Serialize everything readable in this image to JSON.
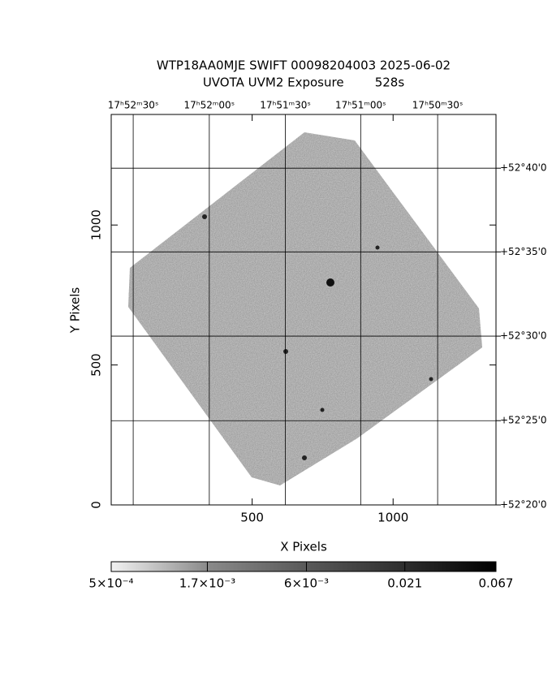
{
  "chart_data": {
    "type": "image",
    "title": "WTP18AA0MJE SWIFT 00098204003 2025-06-02",
    "subtitle": "UVOTA UVM2 Exposure        528s",
    "x_label": "X Pixels",
    "y_label": "Y Pixels",
    "xlim": [
      0,
      1365
    ],
    "ylim": [
      0,
      1395
    ],
    "xticks": [
      500,
      1000
    ],
    "yticks": [
      0,
      500,
      1000
    ],
    "ra_ticks": [
      {
        "value": 78,
        "label": "17ʰ52ᵐ30ˢ"
      },
      {
        "value": 348,
        "label": "17ʰ52ᵐ00ˢ"
      },
      {
        "value": 618,
        "label": "17ʰ51ᵐ30ˢ"
      },
      {
        "value": 885,
        "label": "17ʰ51ᵐ00ˢ"
      },
      {
        "value": 1158,
        "label": "17ʰ50ᵐ30ˢ"
      }
    ],
    "dec_ticks": [
      {
        "value": 1203,
        "label": "+52°40'0"
      },
      {
        "value": 904,
        "label": "+52°35'0"
      },
      {
        "value": 603,
        "label": "+52°30'0"
      },
      {
        "value": 301,
        "label": "+52°25'0"
      },
      {
        "value": 0,
        "label": "+52°20'0"
      }
    ],
    "grid": true,
    "colorbar": {
      "log": true,
      "lim": [
        0.0005,
        0.067
      ],
      "ticks": [
        {
          "value": 0.0005,
          "label": "5×10⁻⁴"
        },
        {
          "value": 0.0017,
          "label": "1.7×10⁻³"
        },
        {
          "value": 0.006,
          "label": "6×10⁻³"
        },
        0.021,
        0.067
      ]
    }
  }
}
